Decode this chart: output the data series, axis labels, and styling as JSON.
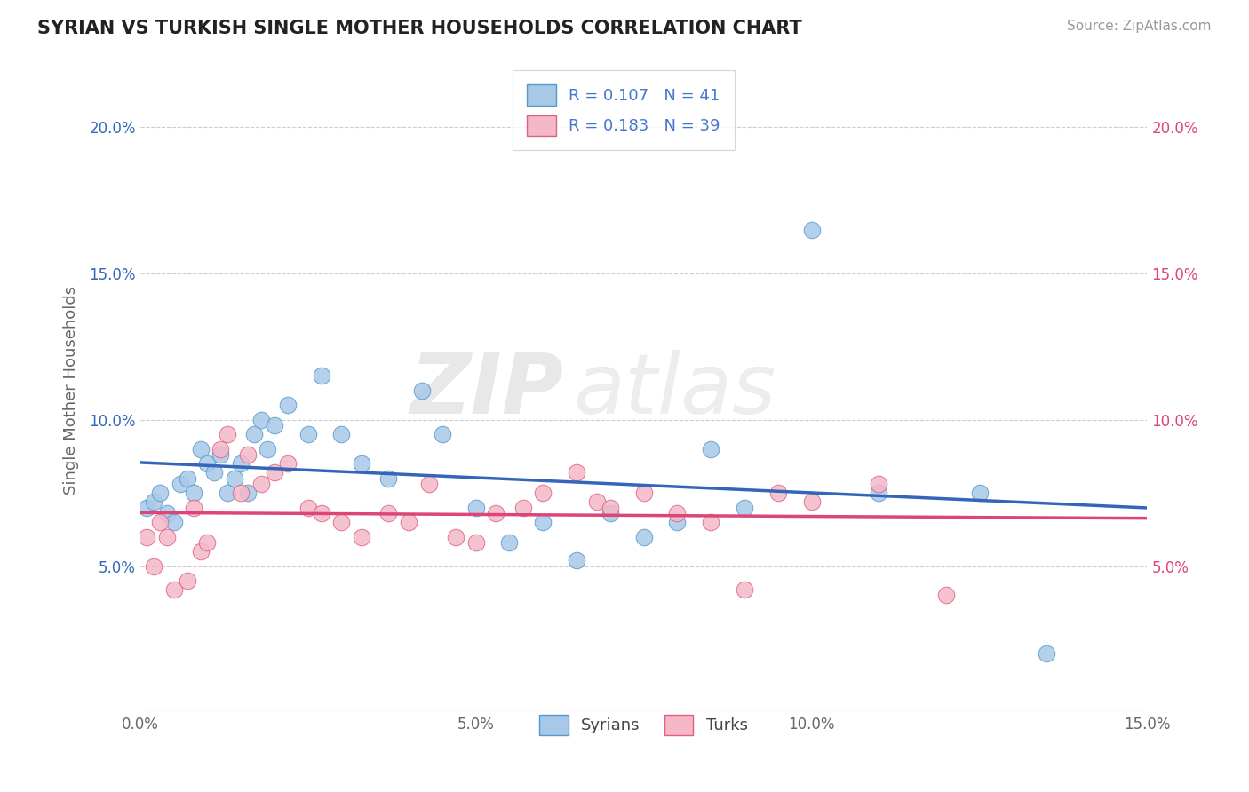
{
  "title": "SYRIAN VS TURKISH SINGLE MOTHER HOUSEHOLDS CORRELATION CHART",
  "source": "Source: ZipAtlas.com",
  "ylabel": "Single Mother Households",
  "xlim": [
    0.0,
    0.15
  ],
  "ylim": [
    0.0,
    0.22
  ],
  "xticks": [
    0.0,
    0.05,
    0.1,
    0.15
  ],
  "xtick_labels": [
    "0.0%",
    "5.0%",
    "10.0%",
    "15.0%"
  ],
  "yticks": [
    0.05,
    0.1,
    0.15,
    0.2
  ],
  "ytick_labels": [
    "5.0%",
    "10.0%",
    "15.0%",
    "20.0%"
  ],
  "grid_color": "#cccccc",
  "background_color": "#ffffff",
  "watermark_zip": "ZIP",
  "watermark_atlas": "atlas",
  "syrian_color": "#a8c8e8",
  "turkish_color": "#f4b8c8",
  "syrian_edge_color": "#5599cc",
  "turkish_edge_color": "#e06080",
  "syrian_line_color": "#3366bb",
  "turkish_line_color": "#dd4477",
  "legend_text_color": "#4477cc",
  "legend_r_syrian": "R = 0.107",
  "legend_n_syrian": "N = 41",
  "legend_r_turkish": "R = 0.183",
  "legend_n_turkish": "N = 39",
  "syrian_x": [
    0.001,
    0.002,
    0.003,
    0.004,
    0.005,
    0.006,
    0.007,
    0.008,
    0.009,
    0.01,
    0.011,
    0.012,
    0.013,
    0.014,
    0.015,
    0.016,
    0.017,
    0.018,
    0.019,
    0.02,
    0.022,
    0.025,
    0.027,
    0.03,
    0.033,
    0.037,
    0.042,
    0.045,
    0.05,
    0.055,
    0.06,
    0.065,
    0.07,
    0.075,
    0.08,
    0.085,
    0.09,
    0.1,
    0.11,
    0.125,
    0.135
  ],
  "syrian_y": [
    0.07,
    0.072,
    0.075,
    0.068,
    0.065,
    0.078,
    0.08,
    0.075,
    0.09,
    0.085,
    0.082,
    0.088,
    0.075,
    0.08,
    0.085,
    0.075,
    0.095,
    0.1,
    0.09,
    0.098,
    0.105,
    0.095,
    0.115,
    0.095,
    0.085,
    0.08,
    0.11,
    0.095,
    0.07,
    0.058,
    0.065,
    0.052,
    0.068,
    0.06,
    0.065,
    0.09,
    0.07,
    0.165,
    0.075,
    0.075,
    0.02
  ],
  "turkish_x": [
    0.001,
    0.002,
    0.003,
    0.004,
    0.005,
    0.007,
    0.008,
    0.009,
    0.01,
    0.012,
    0.013,
    0.015,
    0.016,
    0.018,
    0.02,
    0.022,
    0.025,
    0.027,
    0.03,
    0.033,
    0.037,
    0.04,
    0.043,
    0.047,
    0.05,
    0.053,
    0.057,
    0.06,
    0.065,
    0.068,
    0.07,
    0.075,
    0.08,
    0.085,
    0.09,
    0.095,
    0.1,
    0.11,
    0.12
  ],
  "turkish_y": [
    0.06,
    0.05,
    0.065,
    0.06,
    0.042,
    0.045,
    0.07,
    0.055,
    0.058,
    0.09,
    0.095,
    0.075,
    0.088,
    0.078,
    0.082,
    0.085,
    0.07,
    0.068,
    0.065,
    0.06,
    0.068,
    0.065,
    0.078,
    0.06,
    0.058,
    0.068,
    0.07,
    0.075,
    0.082,
    0.072,
    0.07,
    0.075,
    0.068,
    0.065,
    0.042,
    0.075,
    0.072,
    0.078,
    0.04
  ]
}
